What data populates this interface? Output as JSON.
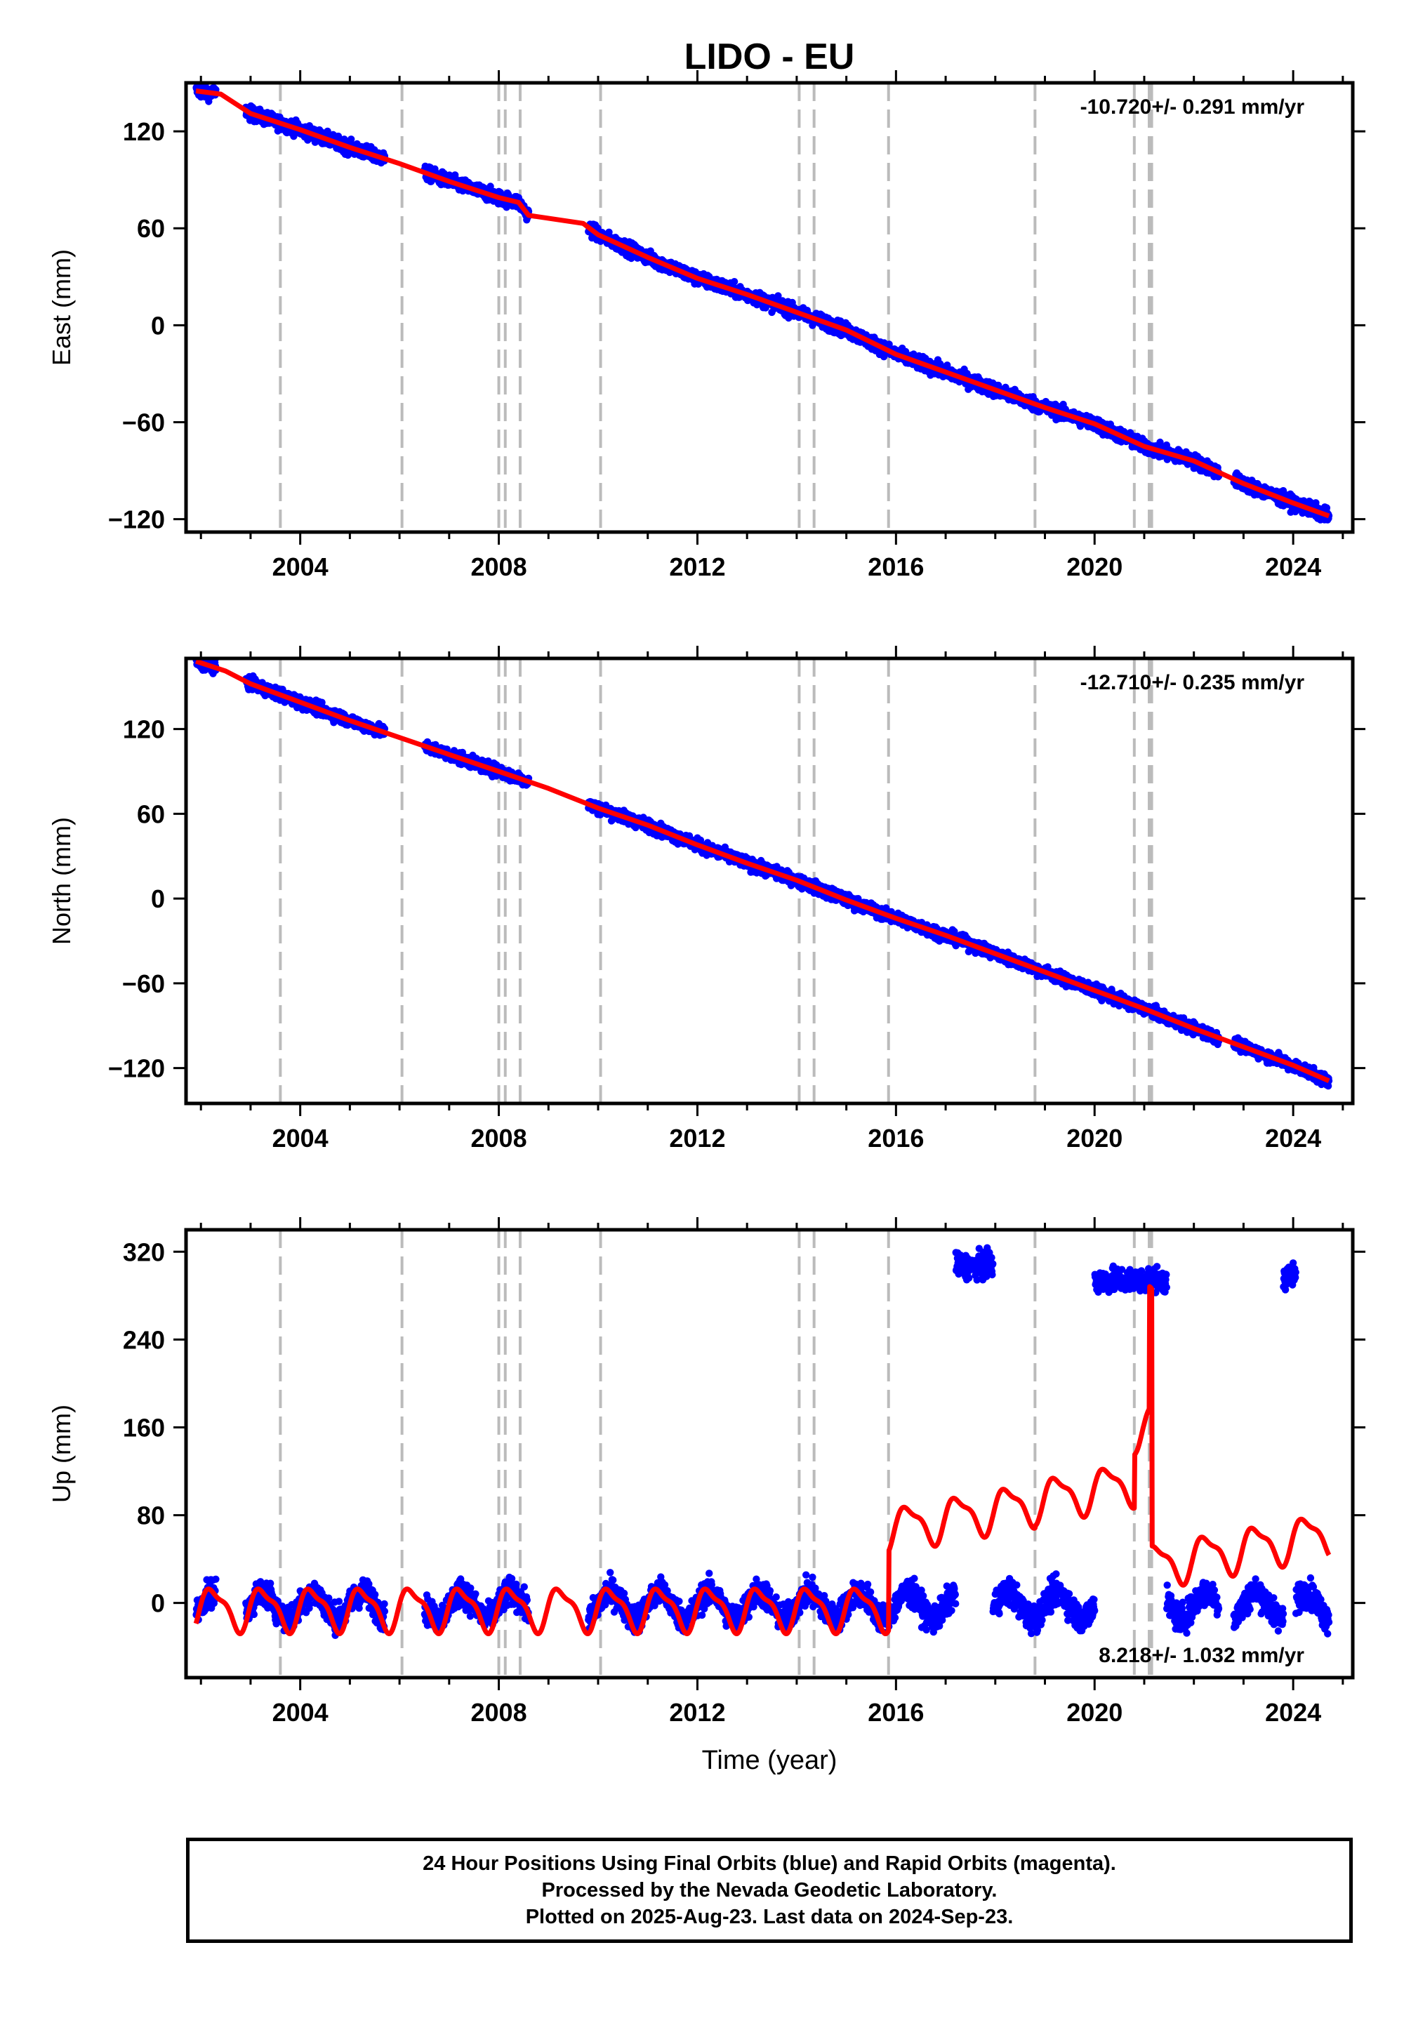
{
  "title": "LIDO - EU",
  "xlabel": "Time (year)",
  "colors": {
    "data": "#0000ff",
    "model": "#ff0000",
    "offsets": "#bbbbbb",
    "frame": "#000000"
  },
  "footer": {
    "line1": "24 Hour Positions Using Final Orbits (blue) and Rapid Orbits (magenta).",
    "line2": "Processed by the Nevada Geodetic Laboratory.",
    "line3": "Plotted on 2025-Aug-23. Last data on 2024-Sep-23."
  },
  "chart_data": [
    {
      "type": "scatter",
      "component": "East",
      "ylabel": "East (mm)",
      "rate_label": "-10.720+/- 0.291 mm/yr",
      "xlim": [
        2001.7,
        2025.2
      ],
      "ylim": [
        -128,
        150
      ],
      "xticks": [
        2004,
        2008,
        2012,
        2016,
        2020,
        2024
      ],
      "yticks": [
        -120,
        -60,
        0,
        60,
        120
      ],
      "offset_epochs": [
        2003.6,
        2006.05,
        2008.0,
        2008.13,
        2008.43,
        2010.05,
        2014.05,
        2014.35,
        2015.85,
        2018.8,
        2020.8,
        2021.1,
        2021.15
      ],
      "data_segments": [
        [
          2001.9,
          2002.3
        ],
        [
          2002.9,
          2005.7
        ],
        [
          2006.5,
          2008.6
        ],
        [
          2009.8,
          2022.5
        ],
        [
          2022.8,
          2024.72
        ]
      ],
      "series": [
        {
          "name": "East",
          "trend_points": [
            [
              2001.9,
              145
            ],
            [
              2002.4,
              143
            ],
            [
              2003.0,
              131
            ],
            [
              2004.0,
              121
            ],
            [
              2005.0,
              110
            ],
            [
              2006.0,
              100
            ],
            [
              2007.0,
              89
            ],
            [
              2008.0,
              79
            ],
            [
              2008.4,
              76
            ],
            [
              2008.6,
              68
            ],
            [
              2009.7,
              63
            ],
            [
              2010.0,
              56
            ],
            [
              2011.0,
              42
            ],
            [
              2012.0,
              29
            ],
            [
              2013.0,
              19
            ],
            [
              2014.0,
              8
            ],
            [
              2015.0,
              -3
            ],
            [
              2016.0,
              -18
            ],
            [
              2017.0,
              -29
            ],
            [
              2018.0,
              -40
            ],
            [
              2019.0,
              -51
            ],
            [
              2020.0,
              -61
            ],
            [
              2021.0,
              -75
            ],
            [
              2022.0,
              -84
            ],
            [
              2023.0,
              -98
            ],
            [
              2024.0,
              -110
            ],
            [
              2024.72,
              -118
            ]
          ]
        }
      ]
    },
    {
      "type": "scatter",
      "component": "North",
      "ylabel": "North (mm)",
      "rate_label": "-12.710+/- 0.235 mm/yr",
      "xlim": [
        2001.7,
        2025.2
      ],
      "ylim": [
        -145,
        170
      ],
      "xticks": [
        2004,
        2008,
        2012,
        2016,
        2020,
        2024
      ],
      "yticks": [
        -120,
        -60,
        0,
        60,
        120
      ],
      "offset_epochs": [
        2003.6,
        2006.05,
        2008.0,
        2008.13,
        2008.43,
        2010.05,
        2014.05,
        2014.35,
        2015.85,
        2018.8,
        2020.8,
        2021.1,
        2021.15
      ],
      "data_segments": [
        [
          2001.9,
          2002.3
        ],
        [
          2002.9,
          2005.7
        ],
        [
          2006.5,
          2008.6
        ],
        [
          2009.8,
          2022.5
        ],
        [
          2022.8,
          2024.72
        ]
      ],
      "series": [
        {
          "name": "North",
          "trend_points": [
            [
              2001.9,
              168
            ],
            [
              2002.5,
              161
            ],
            [
              2003.0,
              152
            ],
            [
              2004.0,
              139
            ],
            [
              2005.0,
              126
            ],
            [
              2006.0,
              114
            ],
            [
              2007.0,
              102
            ],
            [
              2008.0,
              90
            ],
            [
              2009.0,
              78
            ],
            [
              2010.0,
              64
            ],
            [
              2011.0,
              52
            ],
            [
              2012.0,
              38
            ],
            [
              2013.0,
              25
            ],
            [
              2014.0,
              13
            ],
            [
              2015.0,
              -1
            ],
            [
              2016.0,
              -14
            ],
            [
              2017.0,
              -26
            ],
            [
              2018.0,
              -39
            ],
            [
              2019.0,
              -52
            ],
            [
              2020.0,
              -65
            ],
            [
              2021.0,
              -78
            ],
            [
              2022.0,
              -92
            ],
            [
              2023.0,
              -105
            ],
            [
              2024.0,
              -118
            ],
            [
              2024.72,
              -129
            ]
          ]
        }
      ]
    },
    {
      "type": "scatter",
      "component": "Up",
      "ylabel": "Up (mm)",
      "rate_label": "8.218+/- 1.032 mm/yr",
      "xlim": [
        2001.7,
        2025.2
      ],
      "ylim": [
        -68,
        340
      ],
      "xticks": [
        2004,
        2008,
        2012,
        2016,
        2020,
        2024
      ],
      "yticks": [
        0,
        80,
        160,
        240,
        320
      ],
      "offset_epochs": [
        2003.6,
        2006.05,
        2008.0,
        2008.13,
        2008.43,
        2010.05,
        2014.05,
        2014.35,
        2015.85,
        2018.8,
        2020.8,
        2021.1,
        2021.15
      ],
      "data_segments": [
        [
          2001.9,
          2002.3
        ],
        [
          2002.9,
          2005.7
        ],
        [
          2006.5,
          2008.6
        ],
        [
          2009.8,
          2022.5
        ],
        [
          2022.8,
          2024.72
        ]
      ],
      "outlier_clusters": [
        [
          2017.2,
          2017.95,
          307
        ],
        [
          2020.0,
          2021.45,
          294
        ],
        [
          2023.8,
          2024.05,
          298
        ]
      ],
      "series": [
        {
          "name": "Up",
          "model_segments": [
            {
              "x0": 2001.9,
              "x1": 2015.85,
              "base": -5,
              "slope": 0,
              "amp": 18
            },
            {
              "x0": 2015.85,
              "x1": 2018.8,
              "base": 67,
              "slope": 8.2,
              "amp": 18
            },
            {
              "x0": 2018.8,
              "x1": 2020.8,
              "base": 93,
              "slope": 8.2,
              "amp": 18
            },
            {
              "x0": 2020.8,
              "x1": 2021.1,
              "base": 158,
              "slope": 8.2,
              "amp": 18
            },
            {
              "x0": 2021.1,
              "x1": 2021.15,
              "base": 283,
              "slope": 0,
              "amp": 0
            },
            {
              "x0": 2021.15,
              "x1": 2024.72,
              "base": 34,
              "slope": 8.2,
              "amp": 18
            }
          ]
        }
      ]
    }
  ]
}
